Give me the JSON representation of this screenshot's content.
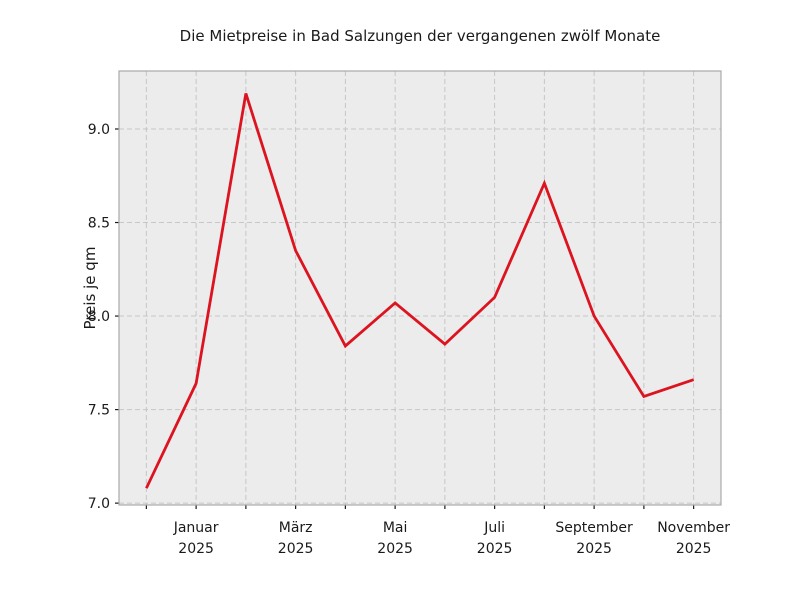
{
  "chart_data": {
    "type": "line",
    "title": "Die Mietpreise in Bad Salzungen der vergangenen zwölf Monate",
    "ylabel": "Preis je qm",
    "xlabel": "",
    "x": [
      0,
      1,
      2,
      3,
      4,
      5,
      6,
      7,
      8,
      9,
      10,
      11
    ],
    "values": [
      7.08,
      7.64,
      9.19,
      8.35,
      7.84,
      8.07,
      7.85,
      8.1,
      8.71,
      8.0,
      7.57,
      7.66
    ],
    "x_tick_labels": [
      {
        "index": 1,
        "month": "Januar",
        "year": "2025"
      },
      {
        "index": 3,
        "month": "März",
        "year": "2025"
      },
      {
        "index": 5,
        "month": "Mai",
        "year": "2025"
      },
      {
        "index": 7,
        "month": "Juli",
        "year": "2025"
      },
      {
        "index": 9,
        "month": "September",
        "year": "2025"
      },
      {
        "index": 11,
        "month": "November",
        "year": "2025"
      }
    ],
    "y_ticks": [
      {
        "value": 7.0,
        "label": "7.0"
      },
      {
        "value": 7.5,
        "label": "7.5"
      },
      {
        "value": 8.0,
        "label": "8.0"
      },
      {
        "value": 8.5,
        "label": "8.5"
      },
      {
        "value": 9.0,
        "label": "9.0"
      }
    ],
    "xlim": [
      -0.55,
      11.55
    ],
    "ylim": [
      6.99,
      9.31
    ],
    "grid": {
      "visible": true,
      "style": "dashed"
    },
    "legend": {
      "visible": false
    },
    "colors": {
      "line": "#dc1420",
      "plot_background": "#ececec",
      "grid": "#c6c6c6",
      "spine": "#a9a9a9",
      "tick": "#1a1a1a",
      "text": "#1a1a1a"
    }
  }
}
